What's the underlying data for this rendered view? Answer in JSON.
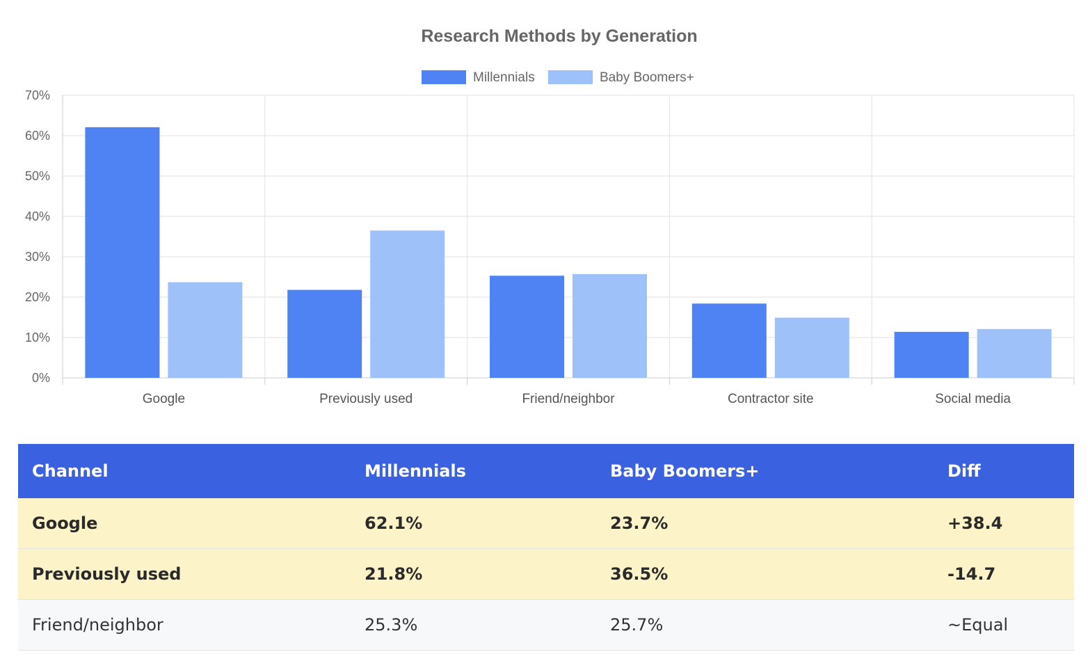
{
  "chart_data": {
    "type": "bar",
    "title": "Research Methods by Generation",
    "categories": [
      "Google",
      "Previously used",
      "Friend/neighbor",
      "Contractor site",
      "Social media"
    ],
    "series": [
      {
        "name": "Millennials",
        "color": "#4f82f3",
        "values": [
          62.1,
          21.8,
          25.3,
          18.4,
          11.4
        ]
      },
      {
        "name": "Baby Boomers+",
        "color": "#9fc1fa",
        "values": [
          23.7,
          36.5,
          25.7,
          14.9,
          12.1
        ]
      }
    ],
    "ylim": [
      0,
      70
    ],
    "yticks": [
      0,
      10,
      20,
      30,
      40,
      50,
      60,
      70
    ],
    "ytick_labels": [
      "0%",
      "10%",
      "20%",
      "30%",
      "40%",
      "50%",
      "60%",
      "70%"
    ],
    "xlabel": "",
    "ylabel": "",
    "legend_position": "top-center",
    "grid": true
  },
  "table": {
    "headers": [
      "Channel",
      "Millennials",
      "Baby Boomers+",
      "Diff"
    ],
    "rows": [
      {
        "highlight": true,
        "cells": [
          "Google",
          "62.1%",
          "23.7%",
          "+38.4"
        ]
      },
      {
        "highlight": true,
        "cells": [
          "Previously used",
          "21.8%",
          "36.5%",
          "-14.7"
        ]
      },
      {
        "highlight": false,
        "cells": [
          "Friend/neighbor",
          "25.3%",
          "25.7%",
          "~Equal"
        ]
      }
    ]
  }
}
